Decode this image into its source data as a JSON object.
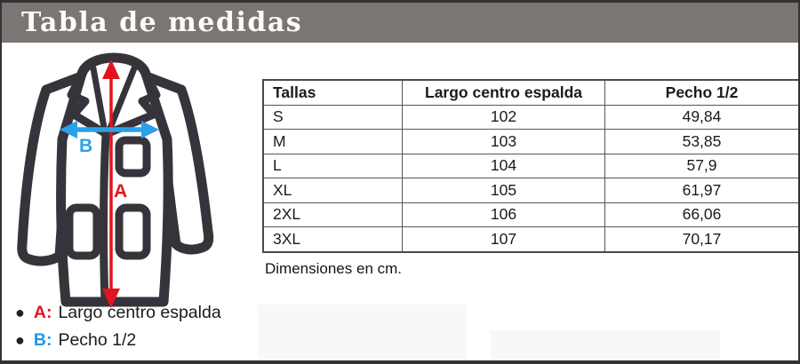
{
  "title": "Tabla de medidas",
  "diagram": {
    "name": "lab-coat measurement diagram",
    "label_a": "A",
    "label_b": "B",
    "arrow_a_color": "#e0151f",
    "arrow_b_color": "#2ba0e8",
    "outline_color": "#36343a"
  },
  "table": {
    "columns": [
      "Tallas",
      "Largo centro espalda",
      "Pecho 1/2"
    ],
    "rows": [
      [
        "S",
        "102",
        "49,84"
      ],
      [
        "M",
        "103",
        "53,85"
      ],
      [
        "L",
        "104",
        "57,9"
      ],
      [
        "XL",
        "105",
        "61,97"
      ],
      [
        "2XL",
        "106",
        "66,06"
      ],
      [
        "3XL",
        "107",
        "70,17"
      ]
    ],
    "note": "Dimensiones en cm."
  },
  "legend": {
    "items": [
      {
        "key": "A:",
        "label": "Largo centro espalda",
        "color": "#e0151f"
      },
      {
        "key": "B:",
        "label": "Pecho 1/2",
        "color": "#2196e3"
      }
    ]
  },
  "colors": {
    "titlebar_bg": "#7b7573",
    "accent_red": "#e0151f",
    "accent_blue": "#2ba0e8",
    "table_border": "#565656"
  },
  "chart_data": {
    "type": "table",
    "title": "Tabla de medidas",
    "columns": [
      "Tallas",
      "Largo centro espalda",
      "Pecho 1/2"
    ],
    "rows": [
      [
        "S",
        102,
        49.84
      ],
      [
        "M",
        103,
        53.85
      ],
      [
        "L",
        104,
        57.9
      ],
      [
        "XL",
        105,
        61.97
      ],
      [
        "2XL",
        106,
        66.06
      ],
      [
        "3XL",
        107,
        70.17
      ]
    ],
    "units": "cm"
  }
}
